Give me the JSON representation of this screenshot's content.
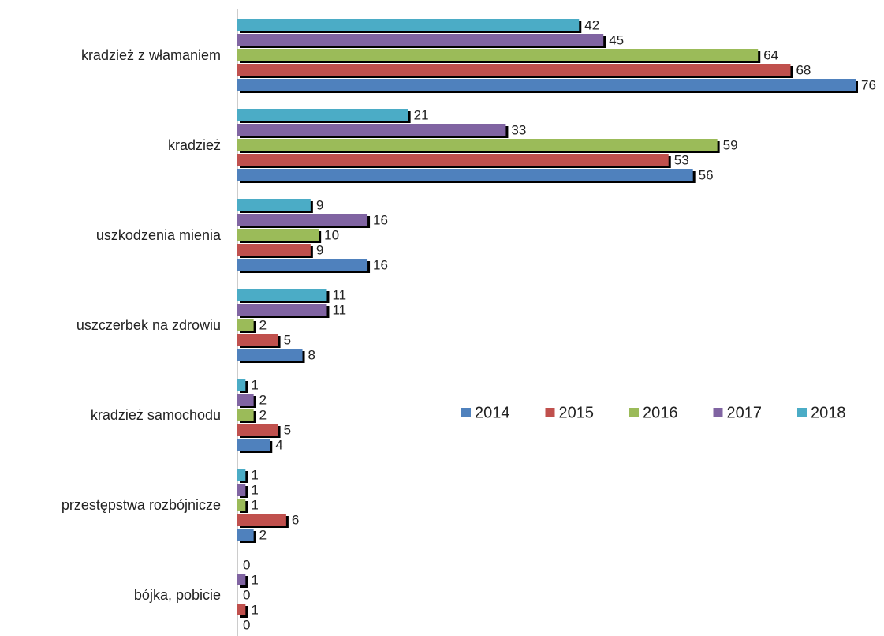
{
  "chart_data": {
    "type": "bar",
    "orientation": "horizontal",
    "categories": [
      "kradzież z włamaniem",
      "kradzież",
      "uszkodzenia mienia",
      "uszczerbek na zdrowiu",
      "kradzież samochodu",
      "przestępstwa rozbójnicze",
      "bójka, pobicie"
    ],
    "series": [
      {
        "name": "2014",
        "color": "#4f81bd",
        "values": [
          76,
          56,
          16,
          8,
          4,
          2,
          0
        ]
      },
      {
        "name": "2015",
        "color": "#c0504d",
        "values": [
          68,
          53,
          9,
          5,
          5,
          6,
          1
        ]
      },
      {
        "name": "2016",
        "color": "#9bbb59",
        "values": [
          64,
          59,
          10,
          2,
          2,
          1,
          0
        ]
      },
      {
        "name": "2017",
        "color": "#8064a2",
        "values": [
          45,
          33,
          16,
          11,
          2,
          1,
          1
        ]
      },
      {
        "name": "2018",
        "color": "#4bacc6",
        "values": [
          42,
          21,
          9,
          11,
          1,
          1,
          0
        ]
      }
    ],
    "legend": "right"
  }
}
